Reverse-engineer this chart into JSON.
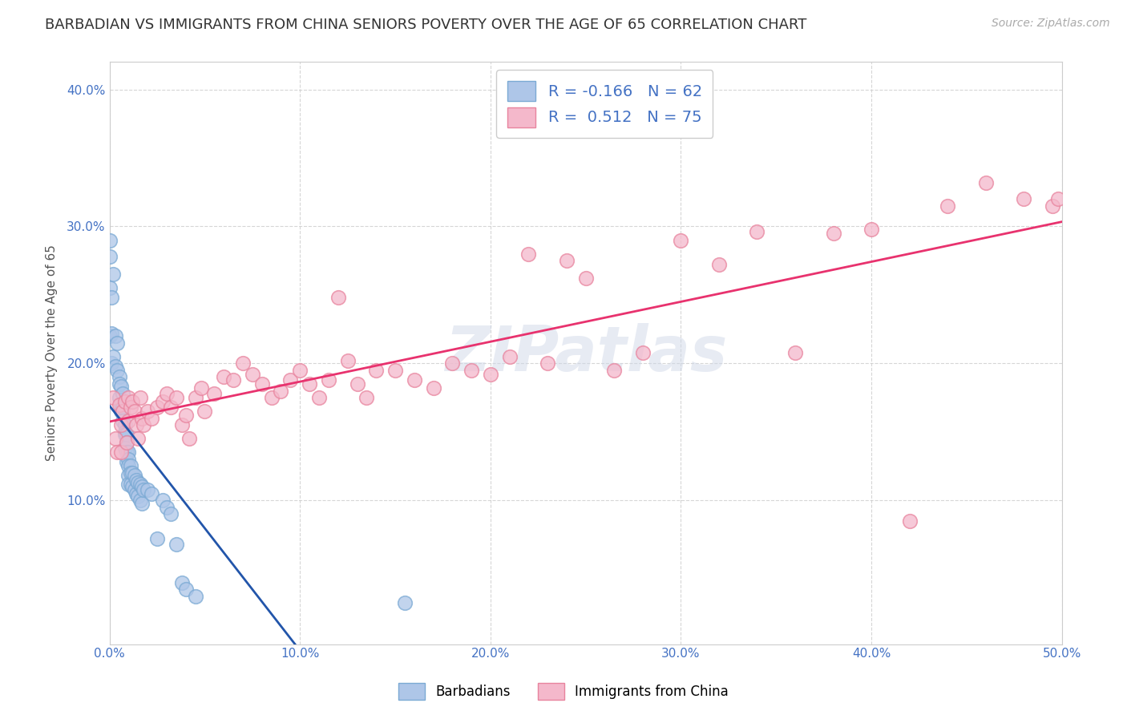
{
  "title": "BARBADIAN VS IMMIGRANTS FROM CHINA SENIORS POVERTY OVER THE AGE OF 65 CORRELATION CHART",
  "source": "Source: ZipAtlas.com",
  "ylabel": "Seniors Poverty Over the Age of 65",
  "xlim": [
    0.0,
    0.5
  ],
  "ylim": [
    -0.005,
    0.42
  ],
  "x_ticks": [
    0.0,
    0.1,
    0.2,
    0.3,
    0.4,
    0.5
  ],
  "x_tick_labels": [
    "0.0%",
    "10.0%",
    "20.0%",
    "30.0%",
    "40.0%",
    "50.0%"
  ],
  "y_ticks": [
    0.1,
    0.2,
    0.3,
    0.4
  ],
  "y_tick_labels": [
    "10.0%",
    "20.0%",
    "30.0%",
    "40.0%"
  ],
  "barbadian_color": "#aec6e8",
  "barbadian_edge_color": "#7baad4",
  "china_color": "#f4b8cb",
  "china_edge_color": "#e8849e",
  "barbadian_line_color": "#2255aa",
  "barbadian_dash_color": "#88aadd",
  "china_line_color": "#e8326e",
  "barbadian_R": "-0.166",
  "barbadian_N": "62",
  "china_R": "0.512",
  "china_N": "75",
  "legend_labels": [
    "Barbadians",
    "Immigrants from China"
  ],
  "background_color": "#ffffff",
  "grid_color": "#cccccc",
  "title_fontsize": 13,
  "label_fontsize": 11,
  "tick_fontsize": 11,
  "source_fontsize": 10,
  "barbadian_scatter": {
    "x": [
      0.0,
      0.0,
      0.0,
      0.0,
      0.001,
      0.001,
      0.001,
      0.002,
      0.002,
      0.003,
      0.003,
      0.004,
      0.004,
      0.005,
      0.005,
      0.005,
      0.006,
      0.006,
      0.006,
      0.007,
      0.007,
      0.007,
      0.008,
      0.008,
      0.008,
      0.008,
      0.009,
      0.009,
      0.009,
      0.009,
      0.01,
      0.01,
      0.01,
      0.01,
      0.01,
      0.011,
      0.011,
      0.011,
      0.012,
      0.012,
      0.013,
      0.013,
      0.014,
      0.014,
      0.015,
      0.015,
      0.016,
      0.016,
      0.017,
      0.017,
      0.018,
      0.02,
      0.022,
      0.025,
      0.028,
      0.03,
      0.032,
      0.035,
      0.038,
      0.04,
      0.045,
      0.155
    ],
    "y": [
      0.29,
      0.278,
      0.255,
      0.22,
      0.248,
      0.222,
      0.2,
      0.265,
      0.205,
      0.22,
      0.198,
      0.215,
      0.195,
      0.19,
      0.185,
      0.175,
      0.183,
      0.17,
      0.165,
      0.178,
      0.168,
      0.158,
      0.155,
      0.15,
      0.148,
      0.138,
      0.148,
      0.142,
      0.135,
      0.128,
      0.135,
      0.13,
      0.125,
      0.118,
      0.112,
      0.125,
      0.12,
      0.112,
      0.12,
      0.11,
      0.118,
      0.108,
      0.115,
      0.105,
      0.113,
      0.103,
      0.112,
      0.1,
      0.11,
      0.098,
      0.108,
      0.108,
      0.105,
      0.072,
      0.1,
      0.095,
      0.09,
      0.068,
      0.04,
      0.035,
      0.03,
      0.025
    ]
  },
  "china_scatter": {
    "x": [
      0.002,
      0.003,
      0.004,
      0.005,
      0.006,
      0.006,
      0.007,
      0.008,
      0.009,
      0.01,
      0.01,
      0.011,
      0.012,
      0.013,
      0.014,
      0.015,
      0.016,
      0.017,
      0.018,
      0.02,
      0.022,
      0.025,
      0.028,
      0.03,
      0.032,
      0.035,
      0.038,
      0.04,
      0.042,
      0.045,
      0.048,
      0.05,
      0.055,
      0.06,
      0.065,
      0.07,
      0.075,
      0.08,
      0.085,
      0.09,
      0.095,
      0.1,
      0.105,
      0.11,
      0.115,
      0.12,
      0.125,
      0.13,
      0.135,
      0.14,
      0.15,
      0.16,
      0.17,
      0.18,
      0.19,
      0.2,
      0.21,
      0.22,
      0.23,
      0.24,
      0.25,
      0.265,
      0.28,
      0.3,
      0.32,
      0.34,
      0.36,
      0.38,
      0.4,
      0.42,
      0.44,
      0.46,
      0.48,
      0.495,
      0.498
    ],
    "y": [
      0.175,
      0.145,
      0.135,
      0.17,
      0.155,
      0.135,
      0.165,
      0.172,
      0.142,
      0.175,
      0.158,
      0.168,
      0.172,
      0.165,
      0.155,
      0.145,
      0.175,
      0.16,
      0.155,
      0.165,
      0.16,
      0.168,
      0.172,
      0.178,
      0.168,
      0.175,
      0.155,
      0.162,
      0.145,
      0.175,
      0.182,
      0.165,
      0.178,
      0.19,
      0.188,
      0.2,
      0.192,
      0.185,
      0.175,
      0.18,
      0.188,
      0.195,
      0.185,
      0.175,
      0.188,
      0.248,
      0.202,
      0.185,
      0.175,
      0.195,
      0.195,
      0.188,
      0.182,
      0.2,
      0.195,
      0.192,
      0.205,
      0.28,
      0.2,
      0.275,
      0.262,
      0.195,
      0.208,
      0.29,
      0.272,
      0.296,
      0.208,
      0.295,
      0.298,
      0.085,
      0.315,
      0.332,
      0.32,
      0.315,
      0.32
    ]
  }
}
